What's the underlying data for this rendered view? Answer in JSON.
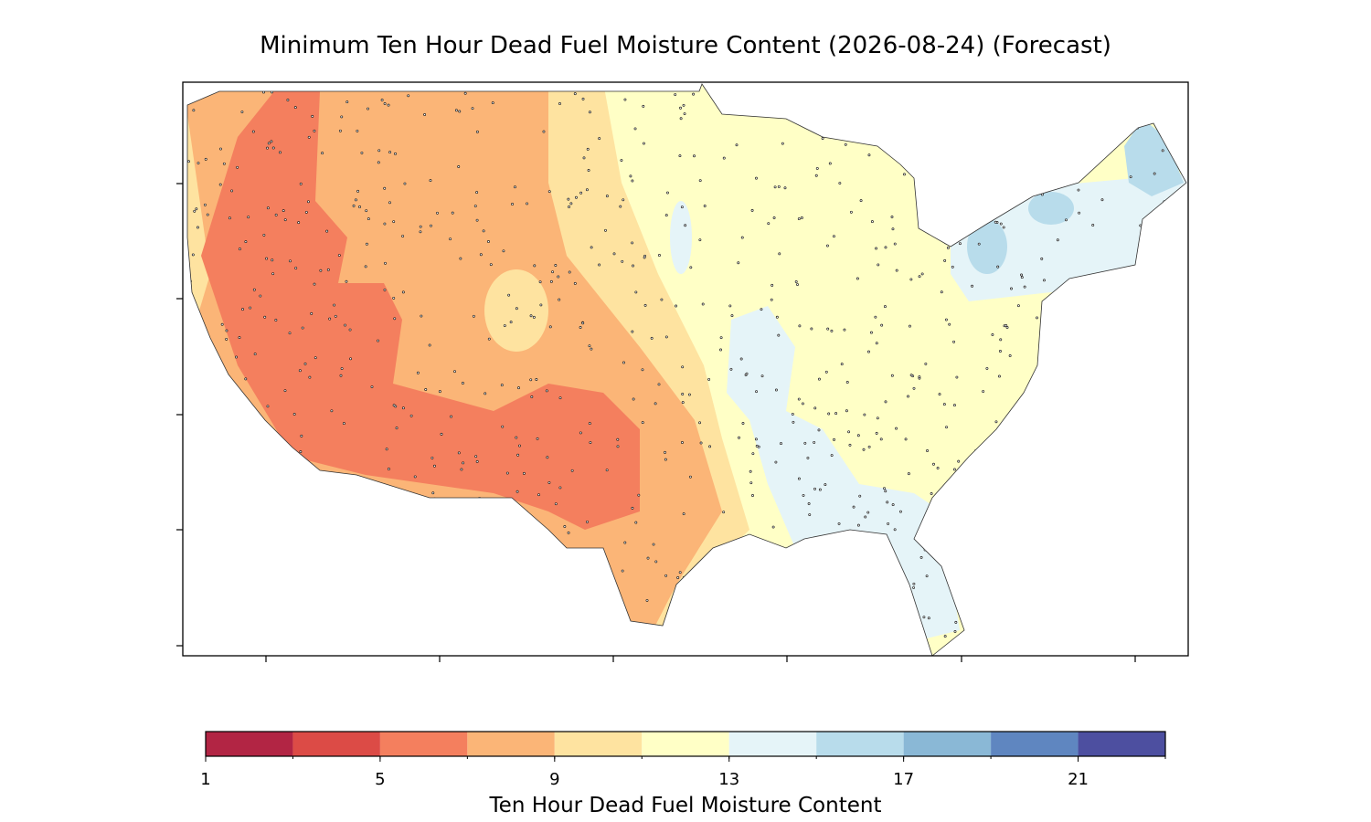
{
  "map": {
    "title": "Minimum Ten Hour Dead Fuel Moisture Content (2026-08-24) (Forecast)"
  },
  "colorbar": {
    "label": "Ten Hour Dead Fuel Moisture Content",
    "lim": [
      1,
      23
    ],
    "levels": [
      1,
      3,
      5,
      7,
      9,
      11,
      13,
      15,
      17,
      19,
      21,
      23
    ],
    "colors": [
      "#b22544",
      "#dc4b46",
      "#f47f5e",
      "#fbb577",
      "#fee3a0",
      "#ffffc6",
      "#e5f4f8",
      "#b8dceb",
      "#8ab8d6",
      "#5f86c0",
      "#4d4fa0"
    ],
    "ticks": [
      1,
      5,
      9,
      13,
      17,
      21
    ]
  }
}
